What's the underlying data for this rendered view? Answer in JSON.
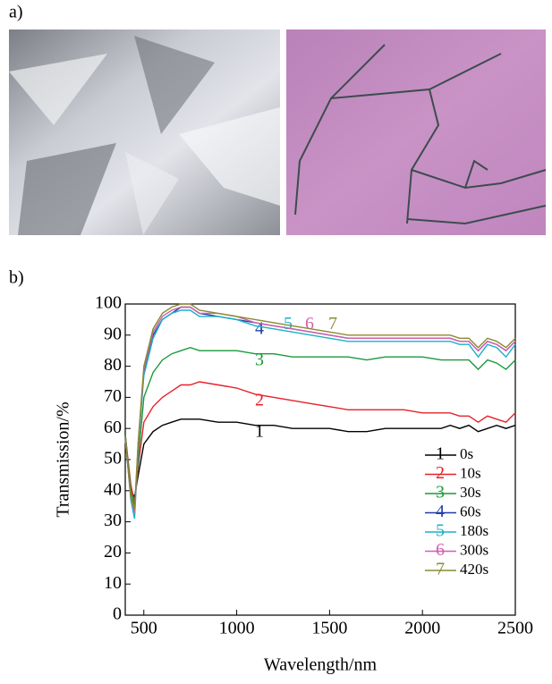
{
  "panel_labels": {
    "a": "a)",
    "b": "b)"
  },
  "chart_data": {
    "type": "line",
    "xlabel": "Wavelength/nm",
    "ylabel": "Transmission/%",
    "x": [
      400,
      430,
      450,
      470,
      500,
      550,
      600,
      650,
      700,
      750,
      800,
      900,
      1000,
      1100,
      1200,
      1300,
      1400,
      1500,
      1600,
      1700,
      1800,
      1900,
      2000,
      2100,
      2150,
      2200,
      2250,
      2300,
      2350,
      2400,
      2450,
      2500
    ],
    "xlim": [
      400,
      2500
    ],
    "xticks": [
      500,
      1000,
      1500,
      2000,
      2500
    ],
    "ylim": [
      0,
      100
    ],
    "yticks": [
      0,
      10,
      20,
      30,
      40,
      50,
      60,
      70,
      80,
      90,
      100
    ],
    "legend": "lower right",
    "series": [
      {
        "name": "0s",
        "label": "1",
        "color": "#000000",
        "values": [
          58,
          40,
          38,
          45,
          55,
          59,
          61,
          62,
          63,
          63,
          63,
          62,
          62,
          61,
          61,
          60,
          60,
          60,
          59,
          59,
          60,
          60,
          60,
          60,
          61,
          60,
          61,
          59,
          60,
          61,
          60,
          61
        ]
      },
      {
        "name": "10s",
        "label": "2",
        "color": "#e8202a",
        "values": [
          58,
          42,
          36,
          48,
          62,
          67,
          70,
          72,
          74,
          74,
          75,
          74,
          73,
          71,
          70,
          69,
          68,
          67,
          66,
          66,
          66,
          66,
          65,
          65,
          65,
          64,
          64,
          62,
          64,
          63,
          62,
          65
        ]
      },
      {
        "name": "30s",
        "label": "3",
        "color": "#1a9a3a",
        "values": [
          58,
          40,
          35,
          50,
          70,
          78,
          82,
          84,
          85,
          86,
          85,
          85,
          85,
          84,
          84,
          83,
          83,
          83,
          83,
          82,
          83,
          83,
          83,
          82,
          82,
          82,
          82,
          79,
          82,
          81,
          79,
          82
        ]
      },
      {
        "name": "60s",
        "label": "4",
        "color": "#1f3ea8",
        "values": [
          57,
          38,
          33,
          55,
          78,
          90,
          95,
          97,
          99,
          99,
          97,
          96,
          95,
          94,
          93,
          92,
          91,
          90,
          89,
          89,
          89,
          89,
          89,
          89,
          89,
          88,
          88,
          85,
          88,
          87,
          85,
          88
        ]
      },
      {
        "name": "180s",
        "label": "5",
        "color": "#1bb0c8",
        "values": [
          57,
          37,
          31,
          54,
          77,
          89,
          95,
          97,
          98,
          98,
          96,
          96,
          95,
          93,
          92,
          91,
          90,
          89,
          88,
          88,
          88,
          88,
          88,
          88,
          88,
          87,
          87,
          83,
          87,
          86,
          83,
          87
        ]
      },
      {
        "name": "300s",
        "label": "6",
        "color": "#d35fb0",
        "values": [
          57,
          38,
          33,
          55,
          79,
          91,
          96,
          98,
          99,
          99,
          97,
          97,
          96,
          94,
          93,
          92,
          91,
          90,
          89,
          89,
          89,
          89,
          89,
          89,
          89,
          88,
          88,
          85,
          88,
          87,
          85,
          88
        ]
      },
      {
        "name": "420s",
        "label": "7",
        "color": "#8a8a30",
        "values": [
          57,
          38,
          34,
          56,
          80,
          92,
          97,
          99,
          100,
          100,
          98,
          97,
          96,
          95,
          94,
          93,
          92,
          91,
          90,
          90,
          90,
          90,
          90,
          90,
          90,
          89,
          89,
          86,
          89,
          88,
          86,
          89
        ]
      }
    ]
  }
}
